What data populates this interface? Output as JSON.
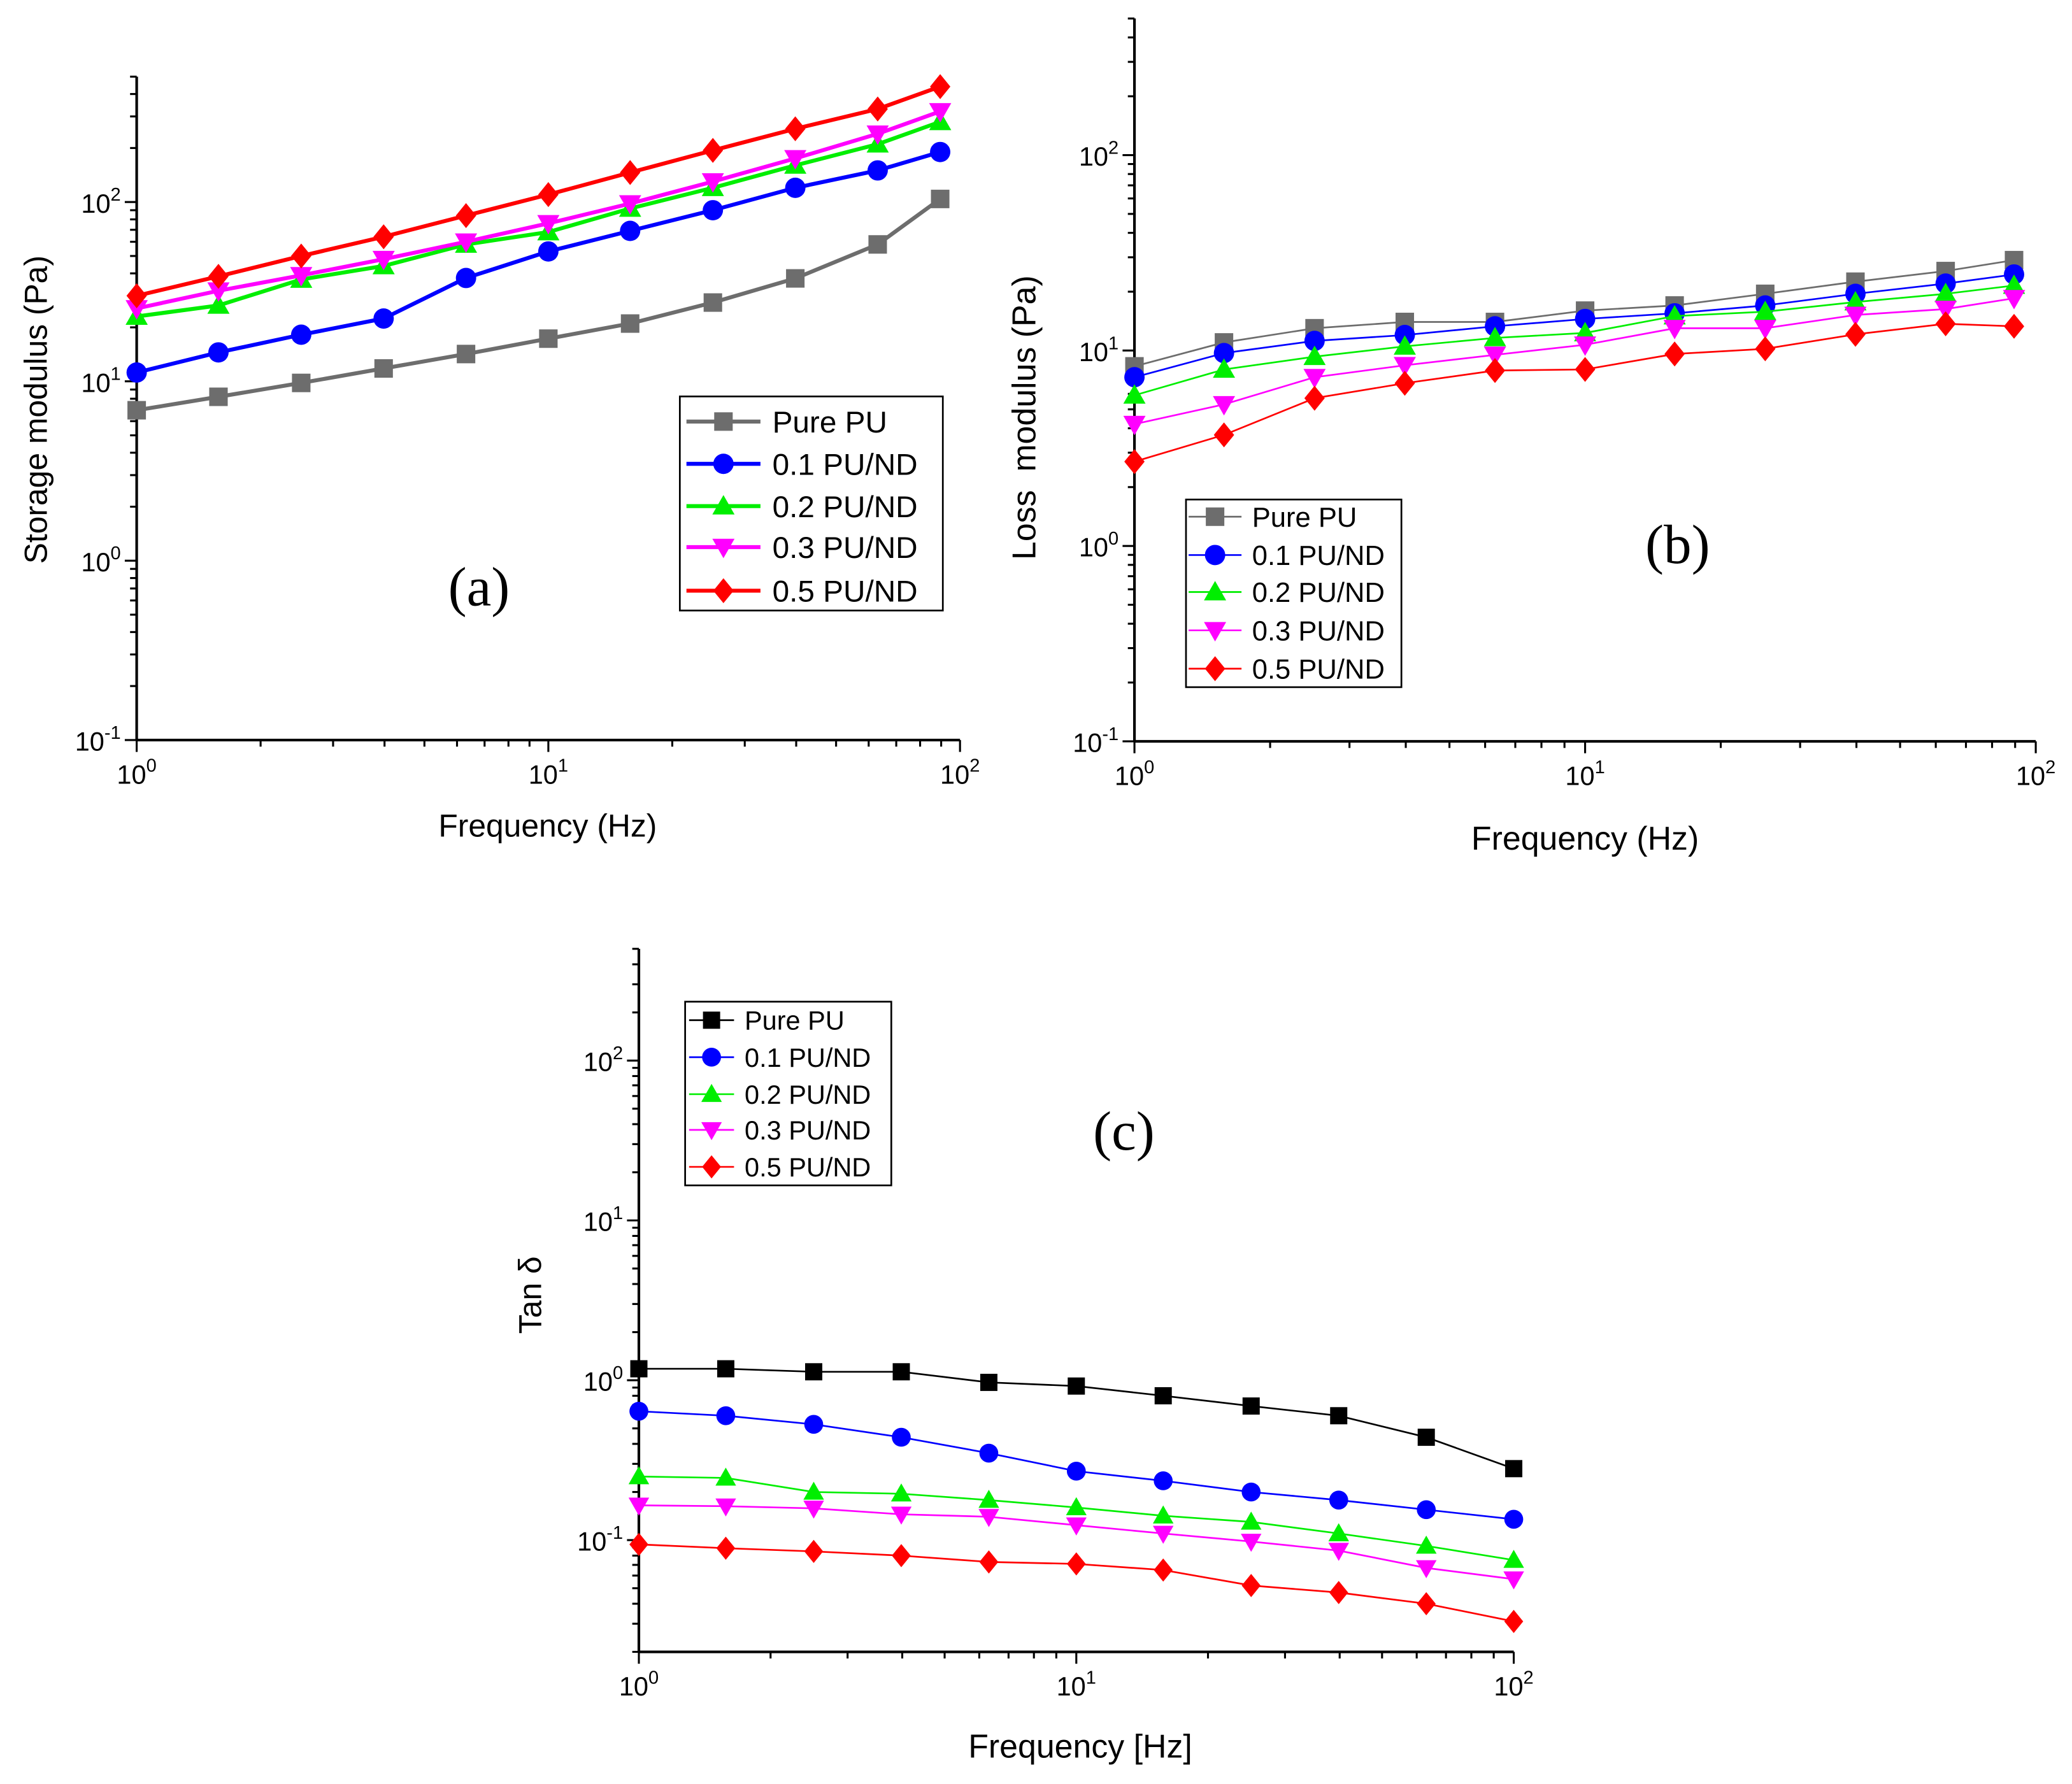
{
  "chart_data": [
    {
      "type": "line",
      "panel_label": "(a)",
      "xlabel": "Frequency (Hz)",
      "ylabel": "Storage modulus (Pa)",
      "xscale": "log",
      "yscale": "log",
      "xlim": [
        1,
        100
      ],
      "ylim": [
        0.1,
        500
      ],
      "xtick_exponents": [
        "0",
        "1",
        "2"
      ],
      "ytick_exponents": [
        "-1",
        "0",
        "1",
        "2"
      ],
      "legend": "center-right",
      "x": [
        1,
        1.58,
        2.51,
        3.98,
        6.31,
        10,
        15.8,
        25.1,
        39.8,
        63.1,
        89.5
      ],
      "series": [
        {
          "name": "Pure PU",
          "color": "#6d6d6d",
          "marker": "square",
          "values": [
            6.9,
            8.2,
            9.8,
            11.8,
            14.2,
            17.3,
            21,
            27.5,
            37.5,
            58,
            104
          ]
        },
        {
          "name": "0.1 PU/ND",
          "color": "#0000ff",
          "marker": "circle",
          "values": [
            11.2,
            14.5,
            18.2,
            22.4,
            37.7,
            53,
            69,
            90,
            120,
            150,
            190
          ]
        },
        {
          "name": "0.2 PU/ND",
          "color": "#00ee00",
          "marker": "triangle-up",
          "values": [
            23,
            26.5,
            37,
            44,
            58,
            68,
            92,
            120,
            160,
            210,
            280
          ]
        },
        {
          "name": "0.3 PU/ND",
          "color": "#ff00ff",
          "marker": "triangle-down",
          "values": [
            25.5,
            32,
            39,
            48,
            60,
            76,
            98,
            130,
            175,
            240,
            320
          ]
        },
        {
          "name": "0.5 PU/ND",
          "color": "#ff0000",
          "marker": "diamond",
          "values": [
            30,
            38.5,
            50,
            64,
            84,
            110,
            146,
            194,
            256,
            330,
            440
          ]
        }
      ]
    },
    {
      "type": "line",
      "panel_label": "(b)",
      "xlabel": "Frequency (Hz)",
      "ylabel": "Loss  modulus (Pa)",
      "xscale": "log",
      "yscale": "log",
      "xlim": [
        1,
        100
      ],
      "ylim": [
        0.1,
        500
      ],
      "xtick_exponents": [
        "0",
        "1",
        "2"
      ],
      "ytick_exponents": [
        "-1",
        "0",
        "1",
        "2"
      ],
      "legend": "center-left",
      "x": [
        1,
        1.58,
        2.51,
        3.98,
        6.31,
        10,
        15.8,
        25.1,
        39.8,
        63.1,
        89.5
      ],
      "series": [
        {
          "name": "Pure PU",
          "color": "#6d6d6d",
          "marker": "square",
          "values": [
            8.3,
            11,
            13,
            14,
            14,
            16,
            17,
            19.5,
            22.5,
            25.5,
            29
          ]
        },
        {
          "name": "0.1 PU/ND",
          "color": "#0000ff",
          "marker": "circle",
          "values": [
            7.3,
            9.7,
            11.2,
            12,
            13.3,
            14.5,
            15.5,
            17,
            19.5,
            22,
            24.5
          ]
        },
        {
          "name": "0.2 PU/ND",
          "color": "#00ee00",
          "marker": "triangle-up",
          "values": [
            5.9,
            8,
            9.3,
            10.5,
            11.6,
            12.3,
            15,
            15.8,
            17.7,
            19.5,
            21.5
          ]
        },
        {
          "name": "0.3 PU/ND",
          "color": "#ff00ff",
          "marker": "triangle-down",
          "values": [
            4.2,
            5.3,
            7.3,
            8.4,
            9.5,
            10.7,
            13,
            13,
            15.2,
            16.3,
            18.5
          ]
        },
        {
          "name": "0.5 PU/ND",
          "color": "#ff0000",
          "marker": "diamond",
          "values": [
            2.7,
            3.7,
            5.7,
            6.8,
            7.9,
            8,
            9.6,
            10.2,
            12.1,
            13.7,
            13.3
          ]
        }
      ]
    },
    {
      "type": "line",
      "panel_label": "(c)",
      "xlabel": "Frequency [Hz]",
      "ylabel": "Tan δ",
      "xscale": "log",
      "yscale": "log",
      "xlim": [
        1,
        100
      ],
      "ylim": [
        0.02,
        500
      ],
      "xtick_exponents": [
        "0",
        "1",
        "2"
      ],
      "ytick_exponents": [
        "-1",
        "0",
        "1",
        "2"
      ],
      "legend": "top-left",
      "x": [
        1,
        1.58,
        2.51,
        3.98,
        6.31,
        10,
        15.8,
        25.1,
        39.8,
        63.1,
        100
      ],
      "series": [
        {
          "name": "Pure PU",
          "color": "#000000",
          "marker": "square",
          "values": [
            1.18,
            1.18,
            1.13,
            1.13,
            0.97,
            0.92,
            0.8,
            0.69,
            0.6,
            0.44,
            0.28
          ]
        },
        {
          "name": "0.1 PU/ND",
          "color": "#0000ff",
          "marker": "circle",
          "values": [
            0.64,
            0.6,
            0.53,
            0.44,
            0.35,
            0.27,
            0.235,
            0.2,
            0.178,
            0.155,
            0.135
          ]
        },
        {
          "name": "0.2 PU/ND",
          "color": "#00ee00",
          "marker": "triangle-up",
          "values": [
            0.25,
            0.245,
            0.2,
            0.195,
            0.178,
            0.16,
            0.142,
            0.13,
            0.11,
            0.092,
            0.075
          ]
        },
        {
          "name": "0.3 PU/ND",
          "color": "#ff00ff",
          "marker": "triangle-down",
          "values": [
            0.165,
            0.163,
            0.158,
            0.145,
            0.14,
            0.124,
            0.11,
            0.098,
            0.086,
            0.067,
            0.057
          ]
        },
        {
          "name": "0.5 PU/ND",
          "color": "#ff0000",
          "marker": "diamond",
          "values": [
            0.094,
            0.089,
            0.085,
            0.08,
            0.073,
            0.071,
            0.065,
            0.052,
            0.047,
            0.04,
            0.031
          ]
        }
      ]
    }
  ]
}
